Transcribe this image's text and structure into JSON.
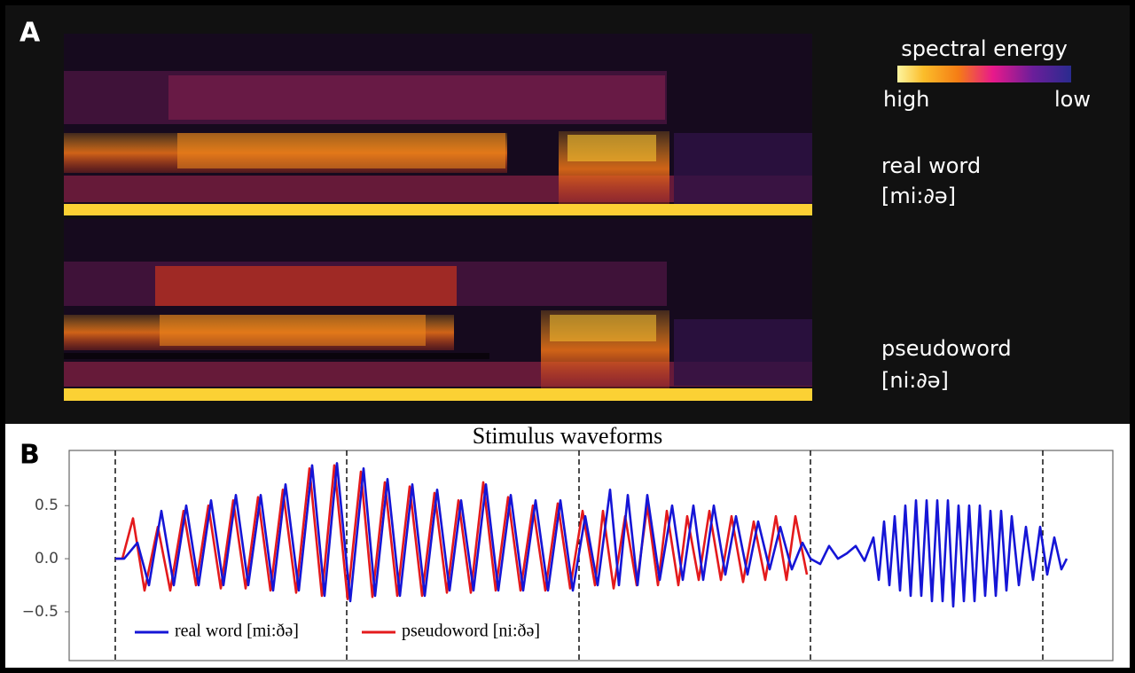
{
  "panel_a": {
    "label": "A",
    "colorbar": {
      "title": "spectral energy",
      "high": "high",
      "low": "low"
    },
    "spectrograms": [
      {
        "label": "real word",
        "ipa": "[mi:∂ə]"
      },
      {
        "label": "pseudoword",
        "ipa": "[ni:∂ə]"
      }
    ]
  },
  "chart_data": {
    "type": "line",
    "panel_label": "B",
    "title": "Stimulus waveforms",
    "xlim": [
      -52,
      1125
    ],
    "ylim": [
      -0.96,
      1.02
    ],
    "yticks": [
      0.5,
      {
        "value": 0,
        "label": "0.0"
      },
      {
        "value": -0.5,
        "label": "−0.5"
      }
    ],
    "vlines": [
      0,
      261,
      523,
      784,
      1046
    ],
    "legend": "lower left",
    "series": [
      {
        "name": "pseudoword [ni:ðə]",
        "color": "#e41a1c",
        "x": [
          0,
          8,
          20,
          33,
          48,
          62,
          77,
          91,
          105,
          119,
          133,
          147,
          161,
          175,
          189,
          204,
          219,
          233,
          247,
          262,
          277,
          290,
          304,
          318,
          332,
          346,
          360,
          374,
          387,
          401,
          415,
          429,
          443,
          457,
          471,
          485,
          499,
          513,
          527,
          541,
          550,
          562,
          575,
          588,
          600,
          612,
          622,
          635,
          645,
          658,
          670,
          683,
          695,
          708,
          720,
          733,
          745,
          757,
          767,
          780
        ],
        "values": [
          0.0,
          0.0,
          0.38,
          -0.3,
          0.3,
          -0.3,
          0.45,
          -0.25,
          0.5,
          -0.28,
          0.55,
          -0.28,
          0.58,
          -0.3,
          0.65,
          -0.32,
          0.85,
          -0.35,
          0.88,
          -0.38,
          0.82,
          -0.36,
          0.72,
          -0.35,
          0.68,
          -0.35,
          0.62,
          -0.32,
          0.55,
          -0.32,
          0.72,
          -0.3,
          0.58,
          -0.3,
          0.5,
          -0.3,
          0.52,
          -0.28,
          0.45,
          -0.25,
          0.45,
          -0.28,
          0.4,
          -0.25,
          0.5,
          -0.25,
          0.45,
          -0.25,
          0.4,
          -0.2,
          0.45,
          -0.2,
          0.4,
          -0.22,
          0.35,
          -0.2,
          0.4,
          -0.2,
          0.4,
          -0.15
        ]
      },
      {
        "name": "real word [mi:ðə]",
        "color": "#1515d6",
        "x": [
          0,
          10,
          25,
          38,
          52,
          66,
          80,
          94,
          108,
          122,
          136,
          150,
          164,
          178,
          192,
          207,
          222,
          236,
          250,
          265,
          280,
          293,
          307,
          321,
          335,
          349,
          363,
          377,
          390,
          404,
          418,
          432,
          446,
          460,
          474,
          488,
          502,
          516,
          530,
          544,
          558,
          568,
          578,
          589,
          600,
          614,
          628,
          640,
          652,
          663,
          675,
          688,
          700,
          713,
          725,
          738,
          750,
          763,
          775,
          784,
          795,
          805,
          815,
          825,
          835,
          845,
          855,
          861,
          867,
          873,
          879,
          885,
          891,
          897,
          903,
          909,
          915,
          921,
          927,
          933,
          939,
          945,
          951,
          957,
          963,
          969,
          975,
          981,
          987,
          993,
          999,
          1005,
          1011,
          1019,
          1027,
          1035,
          1043,
          1051,
          1059,
          1067,
          1073
        ],
        "values": [
          0.0,
          0.0,
          0.15,
          -0.25,
          0.45,
          -0.25,
          0.5,
          -0.25,
          0.55,
          -0.25,
          0.6,
          -0.25,
          0.6,
          -0.3,
          0.7,
          -0.3,
          0.88,
          -0.35,
          0.9,
          -0.4,
          0.85,
          -0.35,
          0.75,
          -0.35,
          0.7,
          -0.35,
          0.65,
          -0.3,
          0.55,
          -0.3,
          0.7,
          -0.3,
          0.6,
          -0.3,
          0.55,
          -0.3,
          0.55,
          -0.3,
          0.4,
          -0.25,
          0.65,
          -0.25,
          0.6,
          -0.25,
          0.6,
          -0.2,
          0.5,
          -0.2,
          0.5,
          -0.2,
          0.5,
          -0.15,
          0.4,
          -0.15,
          0.35,
          -0.1,
          0.3,
          -0.1,
          0.15,
          0.0,
          -0.05,
          0.12,
          0.0,
          0.05,
          0.12,
          -0.02,
          0.2,
          -0.2,
          0.35,
          -0.25,
          0.4,
          -0.3,
          0.5,
          -0.35,
          0.55,
          -0.35,
          0.55,
          -0.4,
          0.55,
          -0.4,
          0.55,
          -0.45,
          0.5,
          -0.4,
          0.5,
          -0.4,
          0.5,
          -0.35,
          0.45,
          -0.35,
          0.45,
          -0.3,
          0.4,
          -0.25,
          0.3,
          -0.2,
          0.3,
          -0.15,
          0.2,
          -0.1,
          0.0
        ]
      }
    ]
  }
}
